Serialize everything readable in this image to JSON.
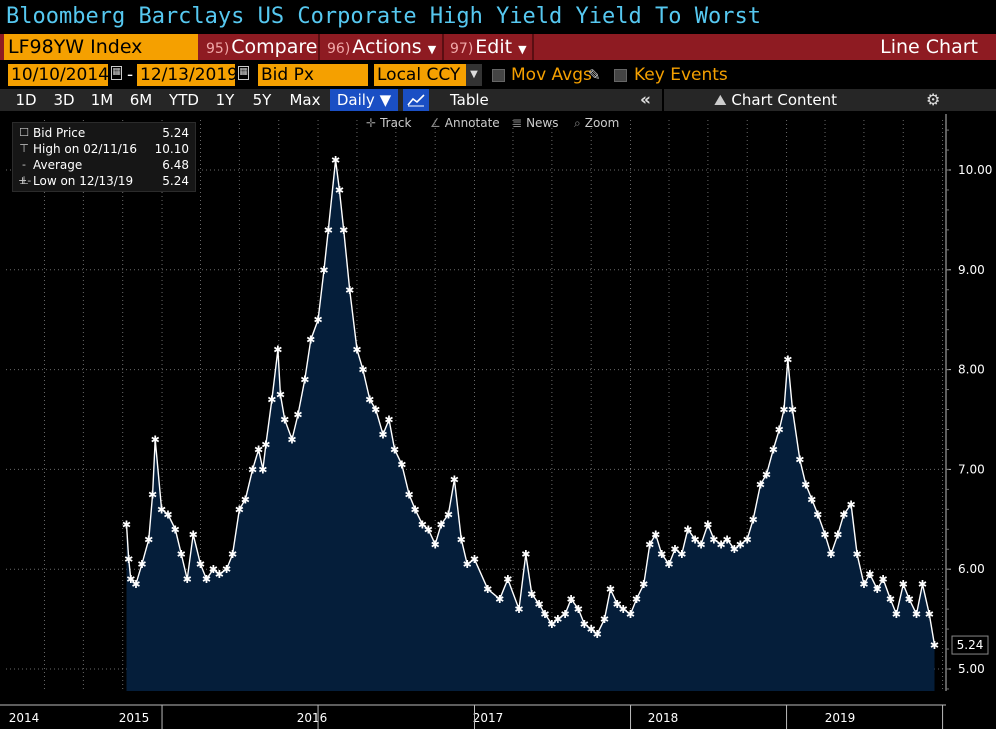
{
  "window": {
    "title": "Bloomberg Barclays US Corporate High Yield Yield To Worst"
  },
  "header": {
    "ticker": "LF98YW Index",
    "compare": {
      "num": "95)",
      "label": "Compare"
    },
    "actions": {
      "num": "96)",
      "label": "Actions"
    },
    "edit": {
      "num": "97)",
      "label": "Edit"
    },
    "chart_type": "Line Chart"
  },
  "controls": {
    "start_date": "10/10/2014",
    "end_date": "12/13/2019",
    "field": "Bid Px",
    "currency": "Local CCY",
    "mov_avgs": "Mov Avgs",
    "key_events": "Key Events"
  },
  "ranges": [
    "1D",
    "3D",
    "1M",
    "6M",
    "YTD",
    "1Y",
    "5Y",
    "Max"
  ],
  "range_bar": {
    "frequency": "Daily",
    "table": "Table",
    "chart_content": "Chart Content"
  },
  "chart_tools": {
    "track": "Track",
    "annotate": "Annotate",
    "news": "News",
    "zoom": "Zoom"
  },
  "legend": {
    "bid_price": {
      "label": "Bid Price",
      "value": "5.24"
    },
    "high": {
      "label": "High on 02/11/16",
      "value": "10.10"
    },
    "average": {
      "label": "Average",
      "value": "6.48"
    },
    "low": {
      "label": "Low on 12/13/19",
      "value": "5.24"
    }
  },
  "colors": {
    "area_fill": "#051e3a",
    "line": "#ffffff",
    "title": "#56c8f0",
    "accent_orange": "#f5a000",
    "header_bar": "#8e1b22",
    "grid": "#6a6a6a"
  },
  "chart_data": {
    "type": "area",
    "title": "",
    "xlabel": "",
    "ylabel": "",
    "ylim": [
      4.8,
      10.5
    ],
    "grid": true,
    "legend_position": "top-left",
    "y_ticks": [
      "5.00",
      "6.00",
      "7.00",
      "8.00",
      "9.00",
      "10.00"
    ],
    "x_tick_labels": [
      "2014",
      "2015",
      "2016",
      "2017",
      "2018",
      "2019"
    ],
    "last_value_label": "5.24",
    "series": [
      {
        "name": "Bid Price",
        "x": [
          "2014-10-10",
          "2014-10-15",
          "2014-10-20",
          "2014-11-01",
          "2014-11-15",
          "2014-12-01",
          "2014-12-10",
          "2014-12-16",
          "2014-12-31",
          "2015-01-15",
          "2015-02-01",
          "2015-02-15",
          "2015-03-01",
          "2015-03-15",
          "2015-04-01",
          "2015-04-15",
          "2015-05-01",
          "2015-05-15",
          "2015-06-01",
          "2015-06-15",
          "2015-07-01",
          "2015-07-15",
          "2015-08-01",
          "2015-08-15",
          "2015-08-25",
          "2015-09-01",
          "2015-09-15",
          "2015-09-29",
          "2015-10-05",
          "2015-10-15",
          "2015-11-01",
          "2015-11-15",
          "2015-12-01",
          "2015-12-15",
          "2016-01-01",
          "2016-01-15",
          "2016-01-25",
          "2016-02-11",
          "2016-02-20",
          "2016-03-01",
          "2016-03-15",
          "2016-04-01",
          "2016-04-15",
          "2016-05-01",
          "2016-05-15",
          "2016-06-01",
          "2016-06-15",
          "2016-06-28",
          "2016-07-15",
          "2016-08-01",
          "2016-08-15",
          "2016-09-01",
          "2016-09-15",
          "2016-10-01",
          "2016-10-15",
          "2016-11-01",
          "2016-11-15",
          "2016-12-01",
          "2016-12-15",
          "2017-01-01",
          "2017-02-01",
          "2017-03-01",
          "2017-03-20",
          "2017-04-15",
          "2017-05-01",
          "2017-05-15",
          "2017-06-01",
          "2017-06-15",
          "2017-07-01",
          "2017-07-15",
          "2017-08-01",
          "2017-08-15",
          "2017-09-01",
          "2017-09-15",
          "2017-10-01",
          "2017-10-15",
          "2017-11-01",
          "2017-11-15",
          "2017-12-01",
          "2017-12-15",
          "2018-01-01",
          "2018-01-15",
          "2018-02-01",
          "2018-02-15",
          "2018-03-01",
          "2018-03-15",
          "2018-04-01",
          "2018-04-15",
          "2018-05-01",
          "2018-05-15",
          "2018-06-01",
          "2018-06-15",
          "2018-07-01",
          "2018-07-15",
          "2018-08-01",
          "2018-08-15",
          "2018-09-01",
          "2018-09-15",
          "2018-10-01",
          "2018-10-15",
          "2018-11-01",
          "2018-11-15",
          "2018-12-01",
          "2018-12-15",
          "2018-12-26",
          "2019-01-04",
          "2019-01-15",
          "2019-02-01",
          "2019-02-15",
          "2019-03-01",
          "2019-03-15",
          "2019-04-01",
          "2019-04-15",
          "2019-05-01",
          "2019-05-15",
          "2019-06-01",
          "2019-06-15",
          "2019-07-01",
          "2019-07-15",
          "2019-08-01",
          "2019-08-15",
          "2019-09-01",
          "2019-09-15",
          "2019-10-01",
          "2019-10-15",
          "2019-11-01",
          "2019-11-15",
          "2019-12-01",
          "2019-12-13"
        ],
        "values": [
          6.45,
          6.1,
          5.9,
          5.85,
          6.05,
          6.3,
          6.75,
          7.3,
          6.6,
          6.55,
          6.4,
          6.15,
          5.9,
          6.35,
          6.05,
          5.9,
          6.0,
          5.95,
          6.0,
          6.15,
          6.6,
          6.7,
          7.0,
          7.2,
          7.0,
          7.25,
          7.7,
          8.2,
          7.75,
          7.5,
          7.3,
          7.55,
          7.9,
          8.3,
          8.5,
          9.0,
          9.4,
          10.1,
          9.8,
          9.4,
          8.8,
          8.2,
          8.0,
          7.7,
          7.6,
          7.35,
          7.5,
          7.2,
          7.05,
          6.75,
          6.6,
          6.45,
          6.4,
          6.25,
          6.45,
          6.55,
          6.9,
          6.3,
          6.05,
          6.1,
          5.8,
          5.7,
          5.9,
          5.6,
          6.15,
          5.75,
          5.65,
          5.55,
          5.45,
          5.5,
          5.55,
          5.7,
          5.6,
          5.45,
          5.4,
          5.35,
          5.5,
          5.8,
          5.65,
          5.6,
          5.55,
          5.7,
          5.85,
          6.25,
          6.35,
          6.15,
          6.05,
          6.2,
          6.15,
          6.4,
          6.3,
          6.25,
          6.45,
          6.3,
          6.25,
          6.3,
          6.2,
          6.25,
          6.3,
          6.5,
          6.85,
          6.95,
          7.2,
          7.4,
          7.6,
          8.1,
          7.6,
          7.1,
          6.85,
          6.7,
          6.55,
          6.35,
          6.15,
          6.35,
          6.55,
          6.65,
          6.15,
          5.85,
          5.95,
          5.8,
          5.9,
          5.7,
          5.55,
          5.85,
          5.7,
          5.55,
          5.85,
          5.55,
          5.24
        ]
      }
    ]
  }
}
